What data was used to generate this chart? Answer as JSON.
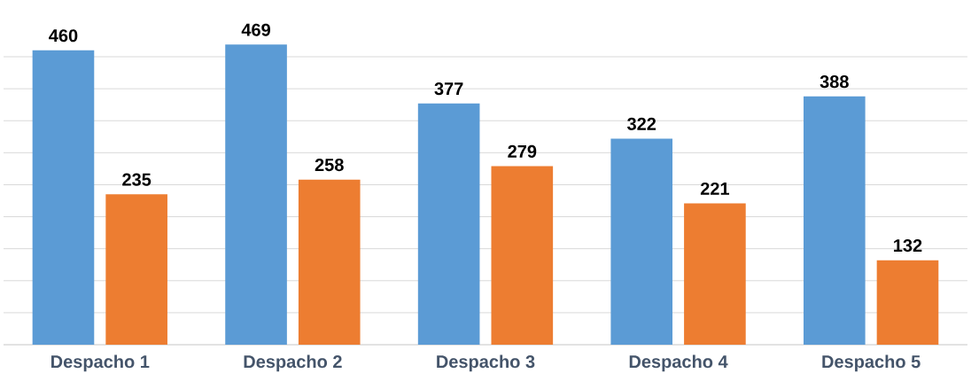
{
  "chart_data": {
    "type": "bar",
    "categories": [
      "Despacho 1",
      "Despacho 2",
      "Despacho 3",
      "Despacho 4",
      "Despacho 5"
    ],
    "series": [
      {
        "color": "#5b9bd5",
        "values": [
          460,
          469,
          377,
          322,
          388
        ]
      },
      {
        "color": "#ed7d31",
        "values": [
          235,
          258,
          279,
          221,
          132
        ]
      }
    ],
    "grid": "y",
    "data_labels": true,
    "tick_labels": "x"
  }
}
